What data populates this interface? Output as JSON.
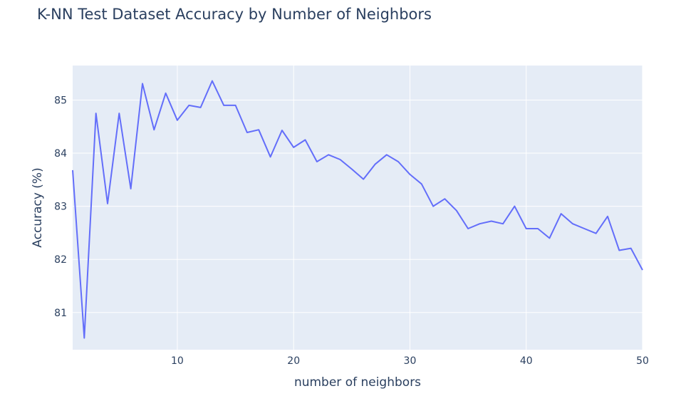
{
  "chart_data": {
    "type": "line",
    "title": "K-NN Test Dataset Accuracy by Number of Neighbors",
    "xlabel": "number of neighbors",
    "ylabel": "Accuracy (%)",
    "xlim": [
      1,
      50
    ],
    "ylim": [
      80.3,
      85.65
    ],
    "x_ticks": [
      10,
      20,
      30,
      40,
      50
    ],
    "y_ticks": [
      81,
      82,
      83,
      84,
      85
    ],
    "grid": true,
    "legend": "none",
    "colors": {
      "line": "#636efa",
      "plot_bg": "#e5ecf6",
      "grid": "#ffffff",
      "text": "#2a3f5f"
    },
    "series": [
      {
        "x": [
          1,
          2,
          3,
          4,
          5,
          6,
          7,
          8,
          9,
          10,
          11,
          12,
          13,
          14,
          15,
          16,
          17,
          18,
          19,
          20,
          21,
          22,
          23,
          24,
          25,
          26,
          27,
          28,
          29,
          30,
          31,
          32,
          33,
          34,
          35,
          36,
          37,
          38,
          39,
          40,
          41,
          42,
          43,
          44,
          45,
          46,
          47,
          48,
          49,
          50
        ],
        "values": [
          83.68,
          80.52,
          84.75,
          83.05,
          84.75,
          83.33,
          85.31,
          84.44,
          85.13,
          84.62,
          84.9,
          84.86,
          85.36,
          84.9,
          84.9,
          84.39,
          84.44,
          83.93,
          84.43,
          84.11,
          84.25,
          83.84,
          83.97,
          83.88,
          83.7,
          83.51,
          83.79,
          83.97,
          83.84,
          83.6,
          83.42,
          83.0,
          83.14,
          82.92,
          82.58,
          82.67,
          82.72,
          82.67,
          83.0,
          82.58,
          82.58,
          82.4,
          82.86,
          82.67,
          82.58,
          82.49,
          82.81,
          82.17,
          82.21,
          81.8
        ]
      }
    ]
  }
}
